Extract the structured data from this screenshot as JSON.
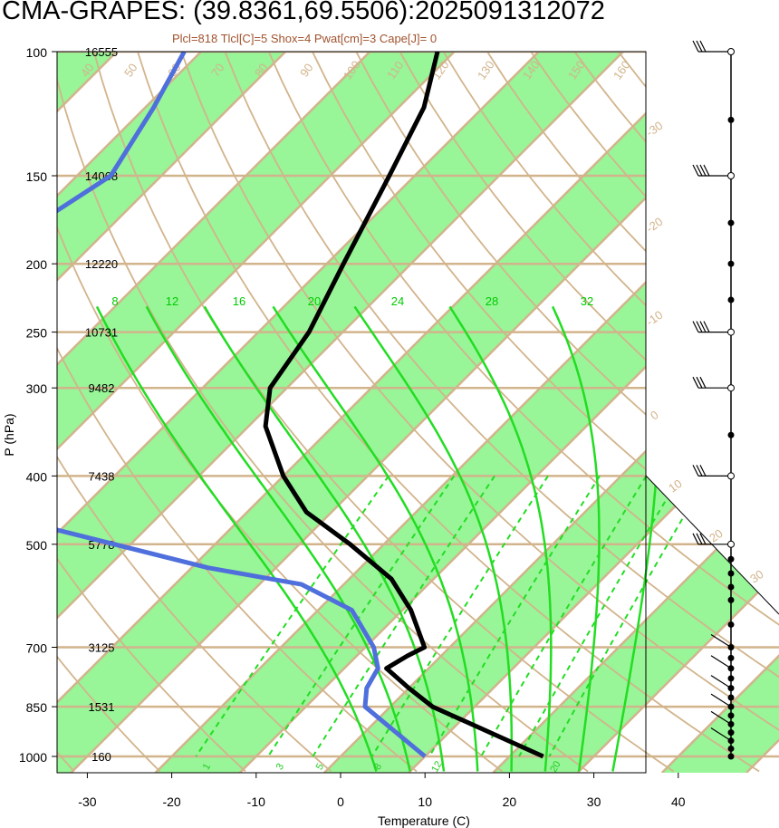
{
  "title": "CMA-GRAPES: (39.8361,69.5506):2025091312072",
  "subtitle": "Plcl=818 Tlcl[C]=5 Shox=4 Pwat[cm]=3 Cape[J]= 0",
  "colors": {
    "background": "#ffffff",
    "isotherm_band": "#98f598",
    "isotherm_line": "#d2b48c",
    "dry_adiabat": "#d2b48c",
    "moist_adiabat": "#22dd22",
    "mixing_ratio": "#22dd22",
    "temperature": "#000000",
    "dewpoint": "#4f6fdc",
    "wind": "#000000"
  },
  "chart_data": {
    "type": "skew-t log-p sounding",
    "xlabel": "Temperature (C)",
    "ylabel": "P (hPa)",
    "x_ticks": [
      -30,
      -20,
      -10,
      0,
      10,
      20,
      30,
      40
    ],
    "x_ticks_text": [
      "-30",
      "-20",
      "-10",
      "0",
      "10",
      "20",
      "30",
      "40"
    ],
    "pressure_levels": [
      100,
      150,
      200,
      250,
      300,
      400,
      500,
      700,
      850,
      1000
    ],
    "pressure_labels": [
      "100",
      "150",
      "200",
      "250",
      "300",
      "400",
      "500",
      "700",
      "850",
      "1000"
    ],
    "heights": [
      "16555",
      "14068",
      "12220",
      "10731",
      "9482",
      "7438",
      "5778",
      "3125",
      "1531",
      "160"
    ],
    "dry_adiabat_labels": [
      "40",
      "50",
      "60",
      "70",
      "80",
      "90",
      "100",
      "110",
      "120",
      "130",
      "140",
      "150",
      "160"
    ],
    "isotherm_edge_labels": [
      "-30",
      "-20",
      "-10",
      "0",
      "10",
      "20",
      "30"
    ],
    "moist_adiabat_labels": [
      "8",
      "12",
      "16",
      "20",
      "24",
      "28",
      "32"
    ],
    "mixing_ratio_labels": [
      "1",
      "3",
      "5",
      "8",
      "12",
      "20"
    ],
    "mixing_ratio_values": [
      1,
      2,
      3,
      5,
      8,
      12,
      16,
      20
    ],
    "temperature_profile": {
      "p": [
        100,
        120,
        150,
        200,
        250,
        300,
        340,
        400,
        450,
        500,
        560,
        620,
        700,
        720,
        750,
        800,
        850,
        1000
      ],
      "t": [
        -72,
        -67,
        -63,
        -58,
        -54,
        -52,
        -48,
        -40,
        -33,
        -24,
        -15,
        -9,
        -3,
        -4,
        -5,
        0,
        5,
        24
      ]
    },
    "dewpoint_profile": {
      "p": [
        100,
        120,
        150,
        175,
        200,
        250,
        285,
        300,
        350,
        400,
        450,
        540,
        570,
        620,
        700,
        750,
        800,
        850,
        1000
      ],
      "td": [
        -102,
        -99,
        -96,
        -99,
        -96,
        -93,
        -92,
        -87,
        -76,
        -75,
        -71,
        -38,
        -25,
        -16,
        -9,
        -6,
        -5,
        -3,
        10
      ]
    },
    "wind_levels": [
      100,
      125,
      150,
      175,
      200,
      225,
      250,
      300,
      350,
      400,
      500,
      525,
      550,
      575,
      600,
      650,
      700,
      725,
      750,
      775,
      800,
      825,
      850,
      875,
      900,
      925,
      950,
      975,
      1000
    ]
  }
}
